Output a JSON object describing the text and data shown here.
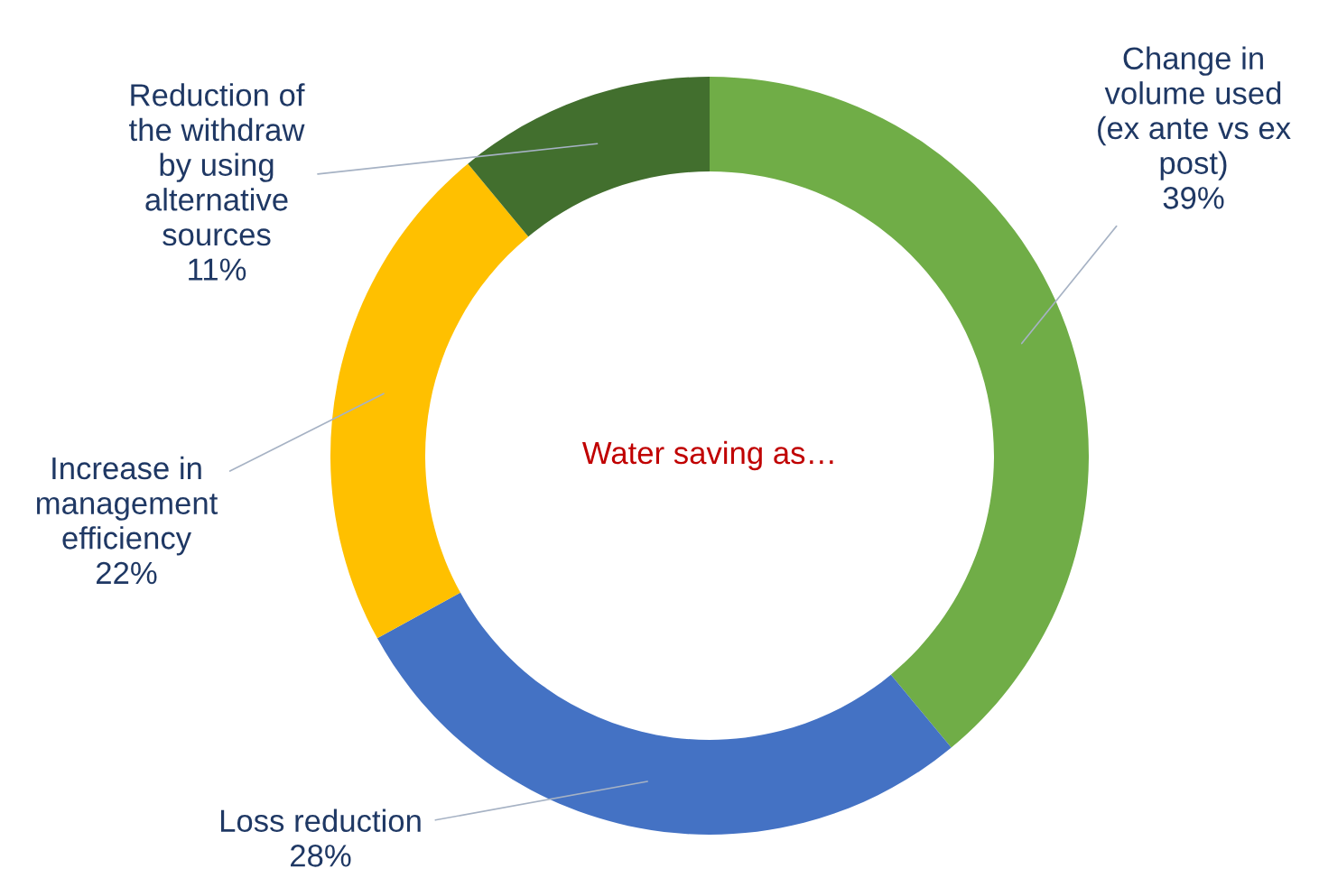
{
  "chart_data": {
    "type": "donut",
    "categories": [
      "Change in\nvolume used\n(ex ante vs ex\npost)",
      "Loss reduction",
      "Increase in\nmanagement\nefficiency",
      "Reduction of\nthe withdraw\nby using\nalternative\nsources"
    ],
    "values": [
      39,
      28,
      22,
      11
    ],
    "value_labels": [
      "39%",
      "28%",
      "22%",
      "11%"
    ],
    "colors": [
      "#70ad47",
      "#4472c4",
      "#ffc000",
      "#426f2e"
    ],
    "annotations": [
      "Water saving as…"
    ]
  }
}
